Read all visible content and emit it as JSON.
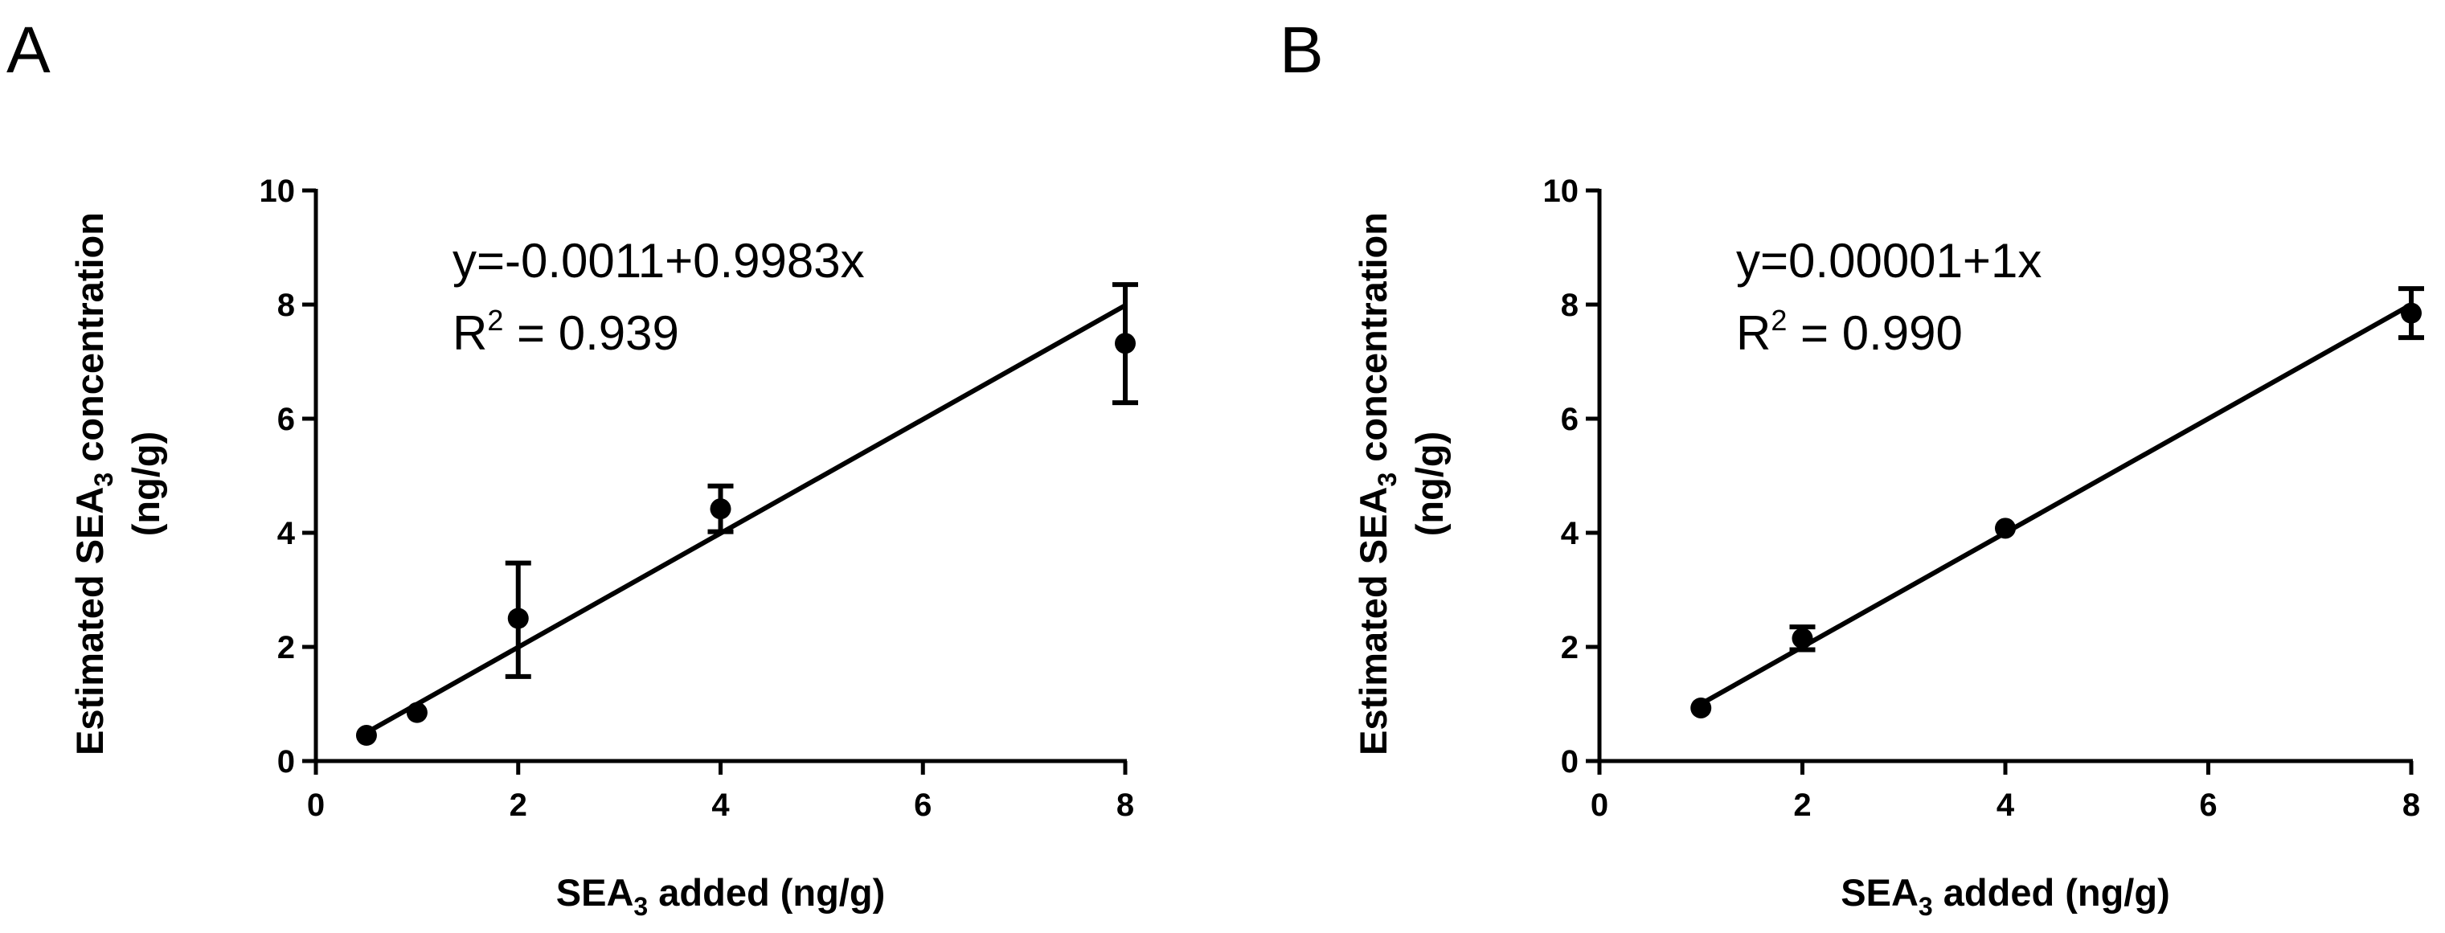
{
  "chart_data": [
    {
      "panel_label": "A",
      "type": "scatter",
      "x": [
        0.5,
        1,
        2,
        4,
        8
      ],
      "y": [
        0.45,
        0.85,
        2.5,
        4.42,
        7.32
      ],
      "error_low": [
        0.45,
        0.85,
        1.48,
        4.02,
        6.28
      ],
      "error_high": [
        0.45,
        0.85,
        3.47,
        4.82,
        8.35
      ],
      "fit": {
        "intercept": -0.0011,
        "slope": 0.9983,
        "x_range": [
          0.5,
          8
        ]
      },
      "equation": "y=-0.0011+0.9983x",
      "r2": {
        "base": "R",
        "sup": "2",
        "rest": " = 0.939"
      },
      "xlabel": {
        "pre": "SEA",
        "sub": "3",
        "post": " added (ng/g)"
      },
      "ylabel": {
        "pre": "Estimated SEA",
        "sub": "3",
        "post": " concentration",
        "line2": "(ng/g)"
      },
      "xlim": [
        0,
        8
      ],
      "ylim": [
        0,
        10
      ],
      "xticks": [
        0,
        2,
        4,
        6,
        8
      ],
      "yticks": [
        0,
        2,
        4,
        6,
        8,
        10
      ],
      "grid": false
    },
    {
      "panel_label": "B",
      "type": "scatter",
      "x": [
        1,
        2,
        4,
        8
      ],
      "y": [
        0.93,
        2.15,
        4.08,
        7.85
      ],
      "error_low": [
        0.93,
        1.95,
        4.08,
        7.42
      ],
      "error_high": [
        0.93,
        2.35,
        4.08,
        8.28
      ],
      "fit": {
        "intercept": 1e-05,
        "slope": 1,
        "x_range": [
          1,
          8
        ]
      },
      "equation": "y=0.00001+1x",
      "r2": {
        "base": "R",
        "sup": "2",
        "rest": " = 0.990"
      },
      "xlabel": {
        "pre": "SEA",
        "sub": "3",
        "post": " added (ng/g)"
      },
      "ylabel": {
        "pre": "Estimated SEA",
        "sub": "3",
        "post": " concentration",
        "line2": "(ng/g)"
      },
      "xlim": [
        0,
        8
      ],
      "ylim": [
        0,
        10
      ],
      "xticks": [
        0,
        2,
        4,
        6,
        8
      ],
      "yticks": [
        0,
        2,
        4,
        6,
        8,
        10
      ],
      "grid": false
    }
  ]
}
